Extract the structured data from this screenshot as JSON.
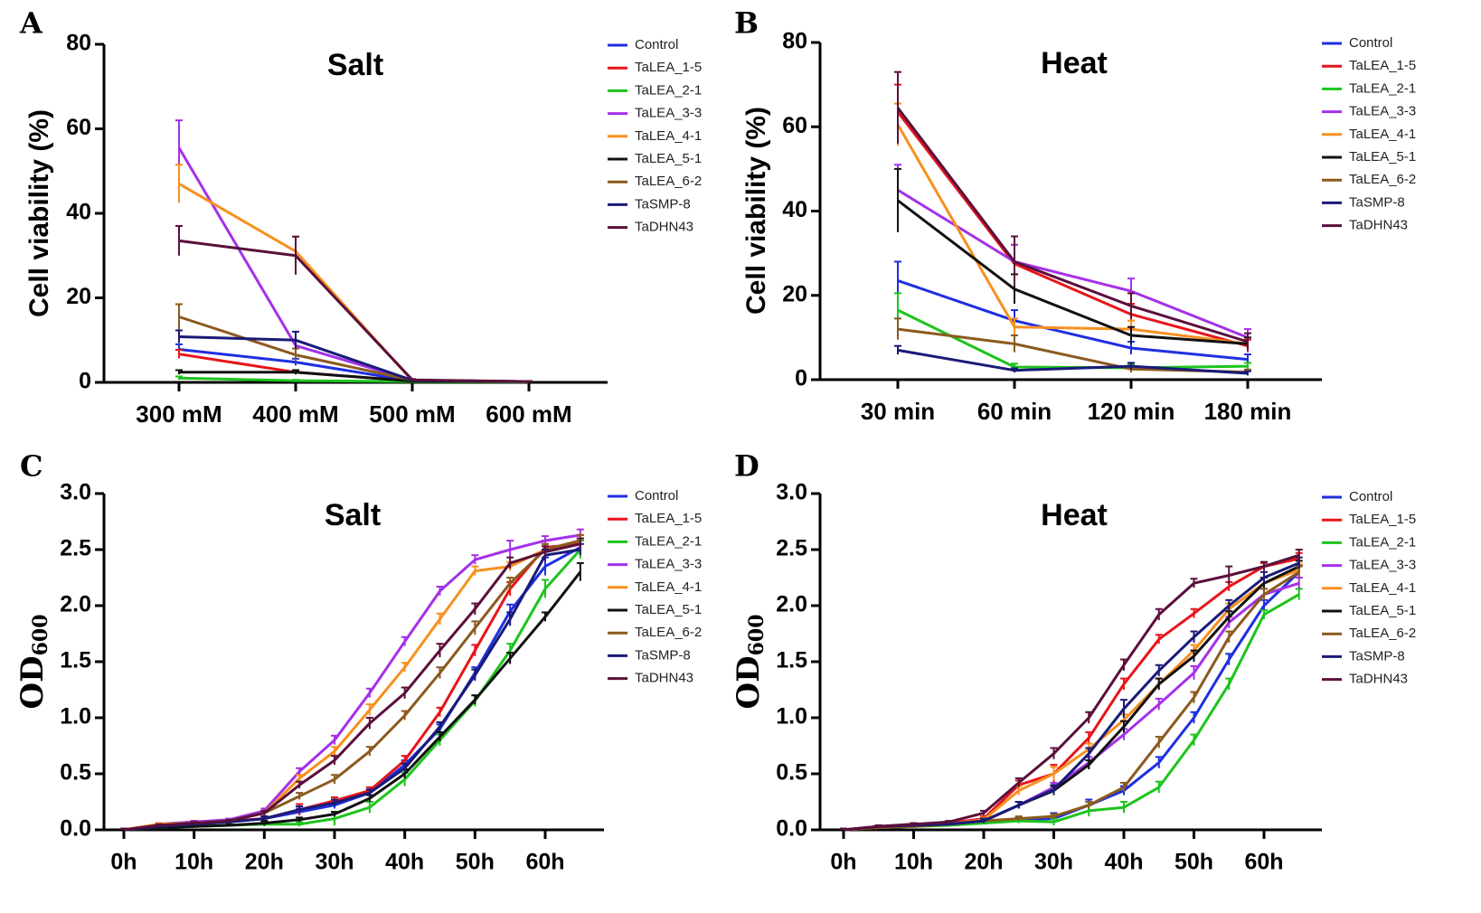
{
  "colors": {
    "Control": "#1f2fe0",
    "TaLEA_1-5": "#e8141b",
    "TaLEA_2-1": "#1dc41d",
    "TaLEA_3-3": "#a431e8",
    "TaLEA_4-1": "#f7901e",
    "TaLEA_5-1": "#111111",
    "TaLEA_6-2": "#8b5a1e",
    "TaSMP-8": "#1a1a78",
    "TaDHN43": "#5a0f3c"
  },
  "chart_data": [
    {
      "id": "A",
      "panel_label": "A",
      "type": "line",
      "title": "Salt",
      "xlabel": "",
      "ylabel": "Cell viability (%)",
      "ylim": [
        0,
        80
      ],
      "yticks": [
        "0",
        "20",
        "40",
        "60",
        "80"
      ],
      "categories": [
        "300 mM",
        "400 mM",
        "500 mM",
        "600 mM"
      ],
      "legend_position": "top-right",
      "series": [
        {
          "name": "Control",
          "values": [
            7.8,
            4.8,
            0.3,
            0.2
          ],
          "err": [
            1.2,
            0.8,
            0.2,
            0.1
          ]
        },
        {
          "name": "TaLEA_1-5",
          "values": [
            6.7,
            2.4,
            0.3,
            0.2
          ],
          "err": [
            1.0,
            0.5,
            0.2,
            0.1
          ]
        },
        {
          "name": "TaLEA_2-1",
          "values": [
            1.0,
            0.4,
            0.2,
            0.1
          ],
          "err": [
            0.4,
            0.2,
            0.1,
            0.1
          ]
        },
        {
          "name": "TaLEA_3-3",
          "values": [
            55.5,
            8.7,
            0.5,
            0.2
          ],
          "err": [
            6.5,
            1.0,
            0.2,
            0.1
          ]
        },
        {
          "name": "TaLEA_4-1",
          "values": [
            47.0,
            31.0,
            0.4,
            0.2
          ],
          "err": [
            4.5,
            3.5,
            0.2,
            0.1
          ]
        },
        {
          "name": "TaLEA_5-1",
          "values": [
            2.4,
            2.4,
            0.3,
            0.2
          ],
          "err": [
            0.5,
            0.5,
            0.2,
            0.1
          ]
        },
        {
          "name": "TaLEA_6-2",
          "values": [
            15.5,
            6.5,
            0.5,
            0.2
          ],
          "err": [
            3.0,
            1.5,
            0.2,
            0.1
          ]
        },
        {
          "name": "TaSMP-8",
          "values": [
            10.8,
            10.0,
            0.5,
            0.2
          ],
          "err": [
            1.5,
            2.0,
            0.2,
            0.1
          ]
        },
        {
          "name": "TaDHN43",
          "values": [
            33.5,
            30.0,
            0.6,
            0.2
          ],
          "err": [
            3.5,
            4.5,
            0.2,
            0.1
          ]
        }
      ]
    },
    {
      "id": "B",
      "panel_label": "B",
      "type": "line",
      "title": "Heat",
      "xlabel": "",
      "ylabel": "Cell viability (%)",
      "ylim": [
        0,
        80
      ],
      "yticks": [
        "0",
        "20",
        "40",
        "60",
        "80"
      ],
      "categories": [
        "30 min",
        "60 min",
        "120 min",
        "180 min"
      ],
      "legend_position": "top-right",
      "series": [
        {
          "name": "Control",
          "values": [
            23.5,
            14.0,
            7.5,
            4.8
          ],
          "err": [
            4.5,
            2.5,
            1.5,
            1.2
          ]
        },
        {
          "name": "TaLEA_1-5",
          "values": [
            63.5,
            27.5,
            15.5,
            8.0
          ],
          "err": [
            6.5,
            4.5,
            2.5,
            1.5
          ]
        },
        {
          "name": "TaLEA_2-1",
          "values": [
            16.5,
            3.0,
            2.8,
            3.2
          ],
          "err": [
            4.0,
            0.8,
            0.8,
            0.8
          ]
        },
        {
          "name": "TaLEA_3-3",
          "values": [
            45.0,
            28.0,
            21.0,
            10.0
          ],
          "err": [
            6.0,
            4.0,
            3.0,
            2.0
          ]
        },
        {
          "name": "TaLEA_4-1",
          "values": [
            60.5,
            12.5,
            12.0,
            8.5
          ],
          "err": [
            5.0,
            2.0,
            2.0,
            1.5
          ]
        },
        {
          "name": "TaLEA_5-1",
          "values": [
            42.5,
            21.5,
            10.5,
            8.5
          ],
          "err": [
            7.5,
            3.5,
            2.0,
            1.5
          ]
        },
        {
          "name": "TaLEA_6-2",
          "values": [
            12.0,
            8.5,
            2.5,
            1.8
          ],
          "err": [
            2.5,
            2.0,
            0.8,
            0.6
          ]
        },
        {
          "name": "TaSMP-8",
          "values": [
            7.0,
            2.2,
            3.2,
            1.5
          ],
          "err": [
            1.0,
            0.5,
            0.8,
            0.5
          ]
        },
        {
          "name": "TaDHN43",
          "values": [
            64.5,
            28.0,
            17.5,
            9.0
          ],
          "err": [
            8.5,
            6.0,
            3.0,
            2.0
          ]
        }
      ]
    },
    {
      "id": "C",
      "panel_label": "C",
      "type": "line",
      "title": "Salt",
      "xlabel": "",
      "ylabel": "OD",
      "ylabel_sub": "600",
      "ylim": [
        0,
        3
      ],
      "yticks": [
        "0.0",
        "0.5",
        "1.0",
        "1.5",
        "2.0",
        "2.5",
        "3.0"
      ],
      "x_range": [
        0,
        66
      ],
      "x_ticks": [
        0,
        10,
        20,
        30,
        40,
        50,
        60
      ],
      "x_tick_labels": [
        "0h",
        "10h",
        "20h",
        "30h",
        "40h",
        "50h",
        "60h"
      ],
      "x": [
        0,
        5,
        10,
        15,
        20,
        25,
        30,
        35,
        40,
        45,
        50,
        55,
        60,
        65
      ],
      "legend_position": "top-right",
      "series": [
        {
          "name": "Control",
          "values": [
            0.0,
            0.03,
            0.05,
            0.07,
            0.1,
            0.16,
            0.22,
            0.33,
            0.58,
            0.9,
            1.4,
            1.95,
            2.35,
            2.52
          ],
          "err": [
            0.01,
            0.01,
            0.01,
            0.01,
            0.02,
            0.03,
            0.03,
            0.03,
            0.04,
            0.04,
            0.05,
            0.06,
            0.08,
            0.06
          ]
        },
        {
          "name": "TaLEA_1-5",
          "values": [
            0.0,
            0.05,
            0.07,
            0.08,
            0.1,
            0.18,
            0.26,
            0.35,
            0.62,
            1.05,
            1.6,
            2.15,
            2.52,
            2.55
          ],
          "err": [
            0.01,
            0.01,
            0.01,
            0.01,
            0.02,
            0.05,
            0.03,
            0.03,
            0.04,
            0.04,
            0.05,
            0.06,
            0.06,
            0.05
          ]
        },
        {
          "name": "TaLEA_2-1",
          "values": [
            0.0,
            0.02,
            0.03,
            0.04,
            0.05,
            0.05,
            0.1,
            0.2,
            0.45,
            0.8,
            1.15,
            1.6,
            2.15,
            2.5
          ],
          "err": [
            0.01,
            0.01,
            0.01,
            0.01,
            0.02,
            0.02,
            0.06,
            0.05,
            0.06,
            0.05,
            0.05,
            0.06,
            0.08,
            0.08
          ]
        },
        {
          "name": "TaLEA_3-3",
          "values": [
            0.0,
            0.05,
            0.07,
            0.09,
            0.17,
            0.52,
            0.8,
            1.22,
            1.68,
            2.13,
            2.41,
            2.5,
            2.58,
            2.63
          ],
          "err": [
            0.01,
            0.01,
            0.01,
            0.01,
            0.02,
            0.03,
            0.04,
            0.04,
            0.04,
            0.04,
            0.04,
            0.08,
            0.04,
            0.05
          ]
        },
        {
          "name": "TaLEA_4-1",
          "values": [
            0.0,
            0.05,
            0.06,
            0.08,
            0.15,
            0.46,
            0.7,
            1.07,
            1.45,
            1.88,
            2.31,
            2.35,
            2.5,
            2.58
          ],
          "err": [
            0.01,
            0.01,
            0.01,
            0.01,
            0.02,
            0.03,
            0.04,
            0.05,
            0.04,
            0.05,
            0.04,
            0.04,
            0.05,
            0.05
          ]
        },
        {
          "name": "TaLEA_5-1",
          "values": [
            0.0,
            0.02,
            0.03,
            0.04,
            0.06,
            0.09,
            0.14,
            0.28,
            0.5,
            0.83,
            1.16,
            1.53,
            1.9,
            2.3
          ],
          "err": [
            0.01,
            0.01,
            0.01,
            0.01,
            0.02,
            0.02,
            0.02,
            0.03,
            0.04,
            0.04,
            0.04,
            0.05,
            0.04,
            0.08
          ]
        },
        {
          "name": "TaLEA_6-2",
          "values": [
            0.0,
            0.04,
            0.06,
            0.08,
            0.15,
            0.3,
            0.45,
            0.7,
            1.02,
            1.4,
            1.8,
            2.2,
            2.5,
            2.58
          ],
          "err": [
            0.01,
            0.01,
            0.01,
            0.01,
            0.02,
            0.03,
            0.04,
            0.04,
            0.04,
            0.05,
            0.06,
            0.05,
            0.05,
            0.05
          ]
        },
        {
          "name": "TaSMP-8",
          "values": [
            0.0,
            0.03,
            0.05,
            0.07,
            0.1,
            0.18,
            0.24,
            0.33,
            0.55,
            0.92,
            1.38,
            1.88,
            2.45,
            2.5
          ],
          "err": [
            0.01,
            0.01,
            0.01,
            0.01,
            0.02,
            0.03,
            0.03,
            0.03,
            0.04,
            0.04,
            0.05,
            0.06,
            0.05,
            0.05
          ]
        },
        {
          "name": "TaDHN43",
          "values": [
            0.0,
            0.04,
            0.06,
            0.08,
            0.15,
            0.4,
            0.62,
            0.95,
            1.22,
            1.6,
            1.97,
            2.38,
            2.48,
            2.55
          ],
          "err": [
            0.01,
            0.01,
            0.01,
            0.01,
            0.02,
            0.03,
            0.04,
            0.05,
            0.05,
            0.06,
            0.05,
            0.05,
            0.05,
            0.05
          ]
        }
      ]
    },
    {
      "id": "D",
      "panel_label": "D",
      "type": "line",
      "title": "Heat",
      "xlabel": "",
      "ylabel": "OD",
      "ylabel_sub": "600",
      "ylim": [
        0,
        3
      ],
      "yticks": [
        "0.0",
        "0.5",
        "1.0",
        "1.5",
        "2.0",
        "2.5",
        "3.0"
      ],
      "x_range": [
        0,
        66
      ],
      "x_ticks": [
        0,
        10,
        20,
        30,
        40,
        50,
        60
      ],
      "x_tick_labels": [
        "0h",
        "10h",
        "20h",
        "30h",
        "40h",
        "50h",
        "60h"
      ],
      "x": [
        0,
        5,
        10,
        15,
        20,
        25,
        30,
        35,
        40,
        45,
        50,
        55,
        60,
        65
      ],
      "legend_position": "top-right",
      "series": [
        {
          "name": "Control",
          "values": [
            0.0,
            0.02,
            0.03,
            0.05,
            0.07,
            0.09,
            0.1,
            0.22,
            0.35,
            0.6,
            1.0,
            1.52,
            2.0,
            2.3
          ],
          "err": [
            0.01,
            0.01,
            0.01,
            0.01,
            0.01,
            0.02,
            0.05,
            0.05,
            0.04,
            0.05,
            0.05,
            0.05,
            0.05,
            0.06
          ]
        },
        {
          "name": "TaLEA_1-5",
          "values": [
            0.0,
            0.03,
            0.05,
            0.06,
            0.1,
            0.4,
            0.5,
            0.82,
            1.3,
            1.7,
            1.93,
            2.17,
            2.35,
            2.42
          ],
          "err": [
            0.01,
            0.01,
            0.01,
            0.01,
            0.02,
            0.04,
            0.08,
            0.05,
            0.05,
            0.04,
            0.04,
            0.04,
            0.03,
            0.05
          ]
        },
        {
          "name": "TaLEA_2-1",
          "values": [
            0.0,
            0.02,
            0.03,
            0.04,
            0.06,
            0.08,
            0.07,
            0.17,
            0.2,
            0.38,
            0.8,
            1.3,
            1.92,
            2.1
          ],
          "err": [
            0.01,
            0.01,
            0.01,
            0.01,
            0.01,
            0.02,
            0.03,
            0.05,
            0.05,
            0.05,
            0.05,
            0.05,
            0.04,
            0.05
          ]
        },
        {
          "name": "TaLEA_3-3",
          "values": [
            0.0,
            0.03,
            0.04,
            0.05,
            0.08,
            0.22,
            0.38,
            0.6,
            0.85,
            1.12,
            1.4,
            1.85,
            2.1,
            2.2
          ],
          "err": [
            0.01,
            0.01,
            0.01,
            0.01,
            0.02,
            0.03,
            0.04,
            0.05,
            0.05,
            0.05,
            0.06,
            0.05,
            0.05,
            0.05
          ]
        },
        {
          "name": "TaLEA_4-1",
          "values": [
            0.0,
            0.02,
            0.04,
            0.05,
            0.09,
            0.35,
            0.5,
            0.72,
            0.98,
            1.3,
            1.6,
            1.97,
            2.2,
            2.32
          ],
          "err": [
            0.01,
            0.01,
            0.01,
            0.01,
            0.02,
            0.04,
            0.06,
            0.05,
            0.05,
            0.05,
            0.05,
            0.05,
            0.05,
            0.05
          ]
        },
        {
          "name": "TaLEA_5-1",
          "values": [
            0.0,
            0.02,
            0.04,
            0.05,
            0.08,
            0.22,
            0.35,
            0.58,
            0.92,
            1.3,
            1.55,
            1.9,
            2.2,
            2.35
          ],
          "err": [
            0.01,
            0.01,
            0.01,
            0.01,
            0.02,
            0.03,
            0.04,
            0.04,
            0.05,
            0.05,
            0.05,
            0.05,
            0.05,
            0.05
          ]
        },
        {
          "name": "TaLEA_6-2",
          "values": [
            0.0,
            0.02,
            0.03,
            0.05,
            0.08,
            0.1,
            0.12,
            0.22,
            0.38,
            0.78,
            1.18,
            1.72,
            2.1,
            2.3
          ],
          "err": [
            0.01,
            0.01,
            0.01,
            0.01,
            0.01,
            0.02,
            0.02,
            0.03,
            0.04,
            0.05,
            0.05,
            0.05,
            0.05,
            0.05
          ]
        },
        {
          "name": "TaSMP-8",
          "values": [
            0.0,
            0.03,
            0.04,
            0.05,
            0.08,
            0.22,
            0.36,
            0.68,
            1.08,
            1.42,
            1.72,
            2.0,
            2.25,
            2.38
          ],
          "err": [
            0.01,
            0.01,
            0.01,
            0.01,
            0.02,
            0.03,
            0.04,
            0.05,
            0.08,
            0.05,
            0.05,
            0.05,
            0.05,
            0.05
          ]
        },
        {
          "name": "TaDHN43",
          "values": [
            0.0,
            0.03,
            0.05,
            0.07,
            0.15,
            0.42,
            0.68,
            1.0,
            1.47,
            1.92,
            2.2,
            2.27,
            2.35,
            2.45
          ],
          "err": [
            0.01,
            0.01,
            0.01,
            0.01,
            0.02,
            0.04,
            0.05,
            0.05,
            0.05,
            0.05,
            0.04,
            0.08,
            0.04,
            0.05
          ]
        }
      ]
    }
  ]
}
